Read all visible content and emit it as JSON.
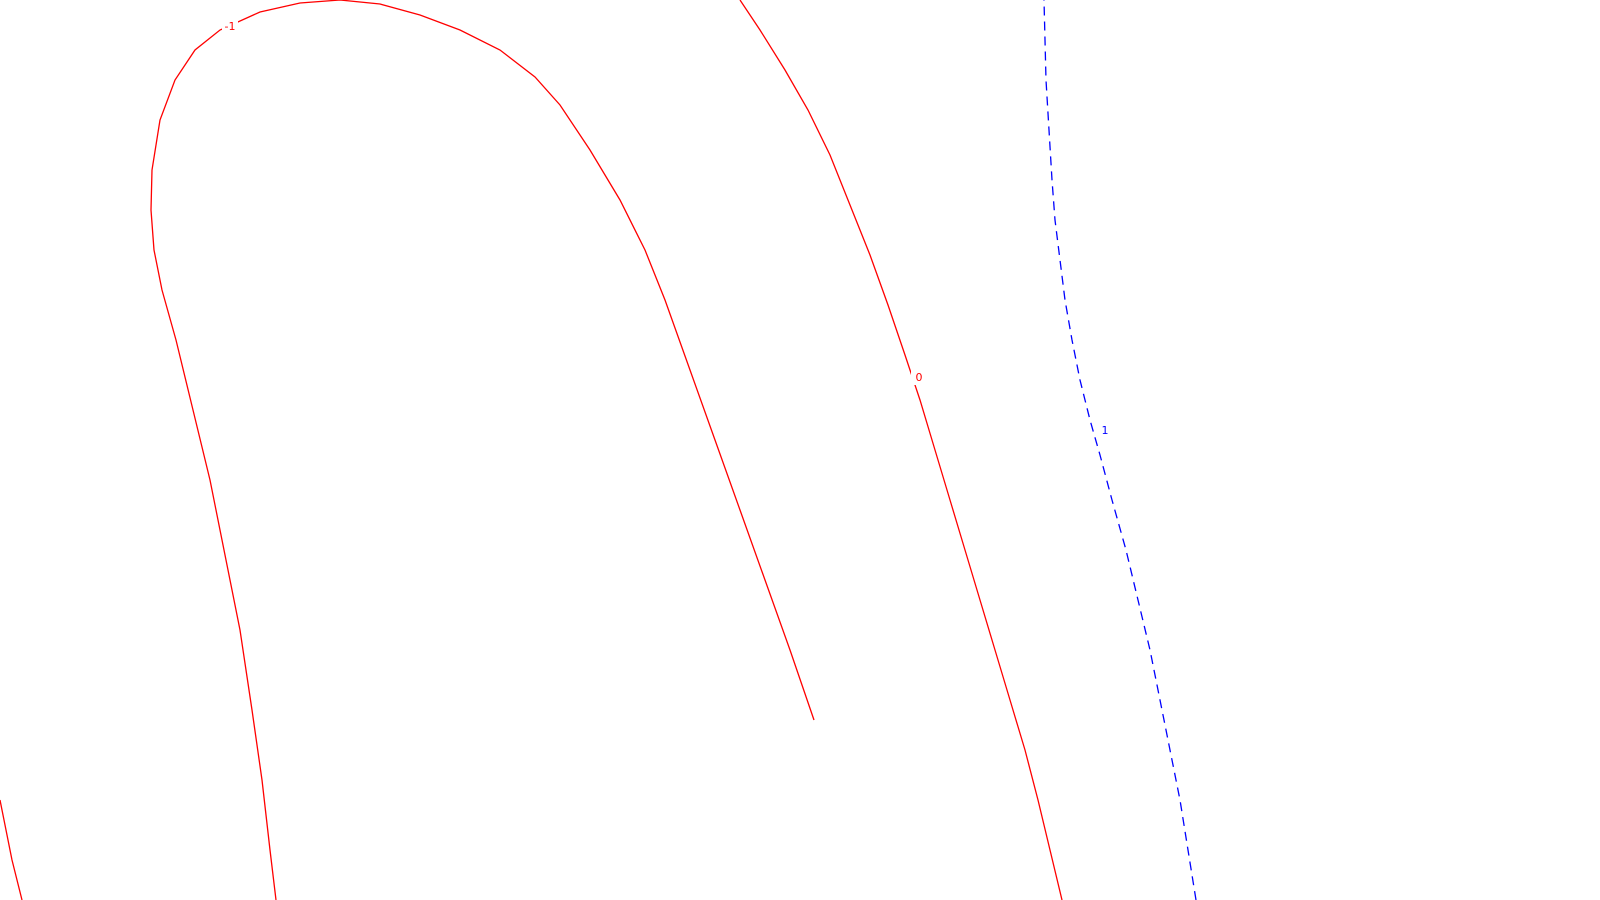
{
  "chart_data": {
    "type": "line",
    "title": "",
    "xlabel": "",
    "ylabel": "",
    "grid": false,
    "legend": "none",
    "colors": {
      "positive": "#0000ff",
      "nonpositive": "#ff0000",
      "background": "#ffffff"
    },
    "series": [
      {
        "level": -1,
        "label": "-1",
        "color": "#ff0000",
        "dash": "solid"
      },
      {
        "level": -1,
        "label": "",
        "color": "#ff0000",
        "dash": "solid"
      },
      {
        "level": 0,
        "label": "0",
        "color": "#ff0000",
        "dash": "solid"
      },
      {
        "level": 1,
        "label": "1",
        "color": "#0000ff",
        "dash": "dashed"
      },
      {
        "level": -1,
        "label": "",
        "color": "#ff0000",
        "dash": "solid"
      }
    ]
  }
}
